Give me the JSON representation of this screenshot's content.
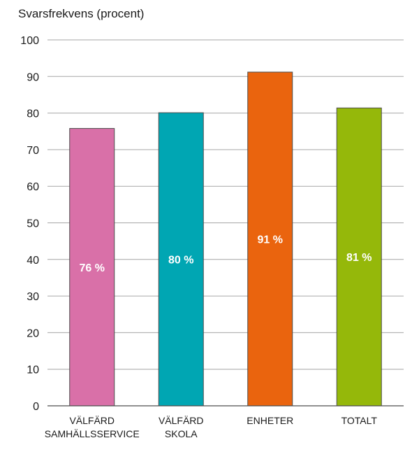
{
  "chart_data": {
    "type": "bar",
    "ylabel": "Svarsfrekvens (procent)",
    "xlabel": "",
    "ylim": [
      0,
      100
    ],
    "yticks": [
      0,
      10,
      20,
      30,
      40,
      50,
      60,
      70,
      80,
      90,
      100
    ],
    "grid": true,
    "categories": [
      [
        "VÄLFÄRD",
        "SAMHÄLLSSERVICE"
      ],
      [
        "VÄLFÄRD",
        "SKOLA"
      ],
      [
        "ENHETER"
      ],
      [
        "TOTALT"
      ]
    ],
    "values": [
      75.8,
      80.1,
      91.2,
      81.4
    ],
    "data_labels": [
      "76 %",
      "80 %",
      "91 %",
      "81 %"
    ],
    "colors": [
      "#d970a8",
      "#00a6b3",
      "#ea640e",
      "#95b80a"
    ]
  }
}
